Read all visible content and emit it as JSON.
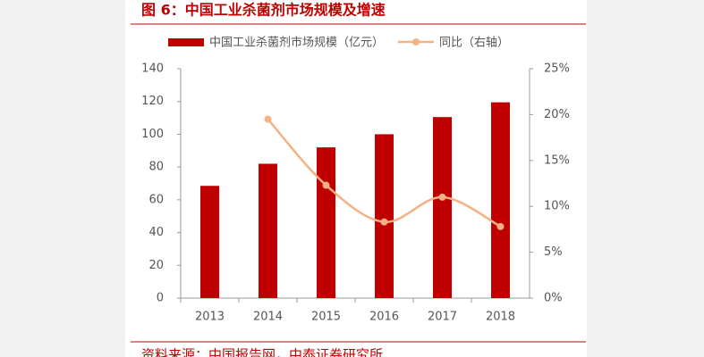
{
  "chart_data": {
    "type": "bar",
    "title": "图 6：中国工业杀菌剂市场规模及增速",
    "source": "资料来源：中国报告网，中泰证券研究所",
    "categories": [
      "2013",
      "2014",
      "2015",
      "2016",
      "2017",
      "2018"
    ],
    "series": [
      {
        "name": "中国工业杀菌剂市场规模（亿元）",
        "type": "bar",
        "color": "#c00000",
        "values": [
          68.5,
          82,
          92,
          100,
          110.5,
          119.5
        ]
      },
      {
        "name": "同比（右轴）",
        "type": "line",
        "color": "#f4b183",
        "axis": "y2",
        "values": [
          null,
          19.5,
          12.3,
          8.3,
          11.0,
          7.8
        ]
      }
    ],
    "ylim": [
      0,
      140
    ],
    "yticks": [
      0,
      20,
      40,
      60,
      80,
      100,
      120,
      140
    ],
    "y2lim": [
      0,
      25
    ],
    "y2ticks": [
      {
        "value": 0,
        "label": "0%"
      },
      {
        "value": 5,
        "label": "5%"
      },
      {
        "value": 10,
        "label": "10%"
      },
      {
        "value": 15,
        "label": "15%"
      },
      {
        "value": 20,
        "label": "20%"
      },
      {
        "value": 25,
        "label": "25%"
      }
    ],
    "legend": "top",
    "grid": false
  }
}
